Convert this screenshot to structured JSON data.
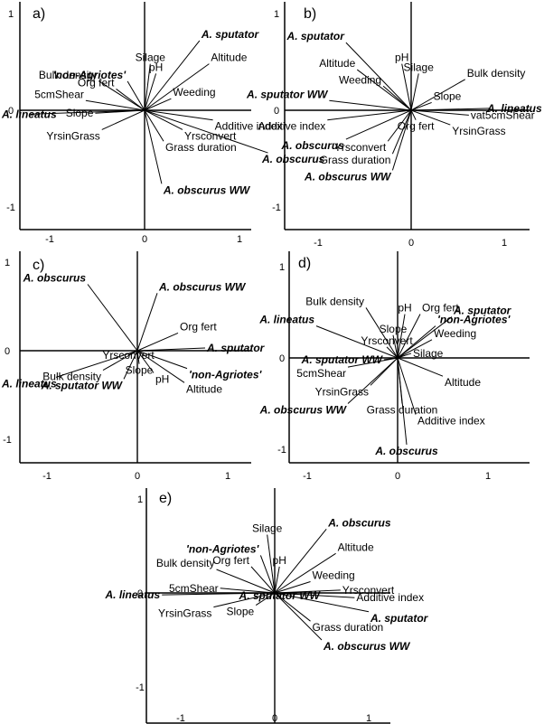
{
  "chart_data": [
    {
      "type": "scatter",
      "panel_label": "a)",
      "xlim": [
        -1.3,
        1.3
      ],
      "ylim": [
        -1.2,
        1.0
      ],
      "x_ticks": [
        "-1",
        "0",
        "1"
      ],
      "y_ticks": [
        "1",
        "0",
        "-1"
      ],
      "vectors": [
        {
          "label": "A. sputator",
          "species": true,
          "x": 0.58,
          "y": 0.72
        },
        {
          "label": "Silage",
          "species": false,
          "x": 0.06,
          "y": 0.48
        },
        {
          "label": "pH",
          "species": false,
          "x": 0.12,
          "y": 0.38
        },
        {
          "label": "Altitude",
          "species": false,
          "x": 0.68,
          "y": 0.48
        },
        {
          "label": "Bulk density",
          "species": false,
          "x": -0.48,
          "y": 0.3
        },
        {
          "label": "'non-Agriotes'",
          "species": true,
          "x": -0.18,
          "y": 0.3
        },
        {
          "label": "Org fert",
          "species": false,
          "x": -0.3,
          "y": 0.22
        },
        {
          "label": "5cmShear",
          "species": false,
          "x": -0.62,
          "y": 0.1
        },
        {
          "label": "Weeding",
          "species": false,
          "x": 0.28,
          "y": 0.12
        },
        {
          "label": "A. lineatus",
          "species": true,
          "x": -1.2,
          "y": -0.04
        },
        {
          "label": "Slope",
          "species": false,
          "x": -0.52,
          "y": -0.03
        },
        {
          "label": "YrsinGrass",
          "species": false,
          "x": -0.45,
          "y": -0.2
        },
        {
          "label": "Additive index",
          "species": false,
          "x": 0.72,
          "y": -0.1
        },
        {
          "label": "Yrsconvert",
          "species": false,
          "x": 0.4,
          "y": -0.2
        },
        {
          "label": "Grass duration",
          "species": false,
          "x": 0.2,
          "y": -0.32
        },
        {
          "label": "A. obscurus",
          "species": true,
          "x": 1.3,
          "y": -0.44
        },
        {
          "label": "A. obscurus WW",
          "species": true,
          "x": 0.18,
          "y": -0.76
        }
      ]
    },
    {
      "type": "scatter",
      "panel_label": "b)",
      "xlim": [
        -1.0,
        1.0
      ],
      "ylim": [
        -1.2,
        1.0
      ],
      "x_ticks": [
        "-1",
        "0",
        "1"
      ],
      "y_ticks": [
        "1",
        "0",
        "-1"
      ],
      "vectors": [
        {
          "label": "A. sputator",
          "species": true,
          "x": -0.7,
          "y": 0.7
        },
        {
          "label": "Altitude",
          "species": false,
          "x": -0.58,
          "y": 0.42
        },
        {
          "label": "pH",
          "species": false,
          "x": -0.1,
          "y": 0.48
        },
        {
          "label": "Silage",
          "species": false,
          "x": 0.08,
          "y": 0.38
        },
        {
          "label": "Bulk density",
          "species": false,
          "x": 0.58,
          "y": 0.32
        },
        {
          "label": "Weeding",
          "species": false,
          "x": -0.3,
          "y": 0.25
        },
        {
          "label": "A. sputator WW",
          "species": true,
          "x": -0.88,
          "y": 0.1
        },
        {
          "label": "Slope",
          "species": false,
          "x": 0.22,
          "y": 0.08
        },
        {
          "label": "A. lineatus",
          "species": true,
          "x": 0.85,
          "y": 0.02
        },
        {
          "label": "Org fert",
          "species": false,
          "x": 0.05,
          "y": -0.1
        },
        {
          "label": "vat5cmShear",
          "species": false,
          "x": 0.62,
          "y": -0.05
        },
        {
          "label": "YrsinGrass",
          "species": false,
          "x": 0.42,
          "y": -0.15
        },
        {
          "label": "Additive index",
          "species": false,
          "x": -0.9,
          "y": -0.1
        },
        {
          "label": "Yrsconvert",
          "species": false,
          "x": -0.25,
          "y": -0.32
        },
        {
          "label": "A. obscurus",
          "species": true,
          "x": -0.7,
          "y": -0.3
        },
        {
          "label": "Grass duration",
          "species": false,
          "x": -0.2,
          "y": -0.45
        },
        {
          "label": "A. obscurus WW",
          "species": true,
          "x": -0.2,
          "y": -0.62
        }
      ]
    },
    {
      "type": "scatter",
      "panel_label": "c)",
      "xlim": [
        -1.2,
        1.2
      ],
      "ylim": [
        -1.2,
        1.0
      ],
      "x_ticks": [
        "-1",
        "0",
        "1"
      ],
      "y_ticks": [
        "1",
        "0",
        "-1"
      ],
      "vectors": [
        {
          "label": "A. obscurus",
          "species": true,
          "x": -0.55,
          "y": 0.75
        },
        {
          "label": "A. obscurus WW",
          "species": true,
          "x": 0.22,
          "y": 0.65
        },
        {
          "label": "Org fert",
          "species": false,
          "x": 0.45,
          "y": 0.2
        },
        {
          "label": "A. sputator",
          "species": true,
          "x": 0.75,
          "y": 0.03
        },
        {
          "label": "Yrsconvert",
          "species": false,
          "x": -0.1,
          "y": -0.05
        },
        {
          "label": "Slope",
          "species": false,
          "x": 0.02,
          "y": -0.15
        },
        {
          "label": "Bulk density",
          "species": false,
          "x": -0.38,
          "y": -0.22
        },
        {
          "label": "pH",
          "species": false,
          "x": 0.18,
          "y": -0.25
        },
        {
          "label": "'non-Agriotes'",
          "species": true,
          "x": 0.55,
          "y": -0.2
        },
        {
          "label": "A. lineatus",
          "species": true,
          "x": -0.9,
          "y": -0.3
        },
        {
          "label": "A. sputator WW",
          "species": true,
          "x": -0.15,
          "y": -0.32
        },
        {
          "label": "Altitude",
          "species": false,
          "x": 0.52,
          "y": -0.36
        }
      ]
    },
    {
      "type": "scatter",
      "panel_label": "d)",
      "xlim": [
        -1.3,
        1.2
      ],
      "ylim": [
        -1.2,
        1.1
      ],
      "x_ticks": [
        "-1",
        "0",
        "1"
      ],
      "y_ticks": [
        "1",
        "0",
        "-1"
      ],
      "vectors": [
        {
          "label": "Bulk density",
          "species": false,
          "x": -0.35,
          "y": 0.55
        },
        {
          "label": "pH",
          "species": false,
          "x": 0.08,
          "y": 0.48
        },
        {
          "label": "Org fert",
          "species": false,
          "x": 0.25,
          "y": 0.48
        },
        {
          "label": "A. sputator",
          "species": true,
          "x": 0.6,
          "y": 0.45
        },
        {
          "label": "'non-Agriotes'",
          "species": true,
          "x": 0.42,
          "y": 0.35
        },
        {
          "label": "A. lineatus",
          "species": true,
          "x": -0.9,
          "y": 0.35
        },
        {
          "label": "Slope",
          "species": false,
          "x": -0.05,
          "y": 0.25
        },
        {
          "label": "Weeding",
          "species": false,
          "x": 0.38,
          "y": 0.2
        },
        {
          "label": "Yrsconvert",
          "species": false,
          "x": -0.12,
          "y": 0.12
        },
        {
          "label": "Silage",
          "species": false,
          "x": 0.15,
          "y": 0.05
        },
        {
          "label": "A. sputator WW",
          "species": true,
          "x": -0.15,
          "y": -0.02
        },
        {
          "label": "5cmShear",
          "species": false,
          "x": -0.55,
          "y": -0.1
        },
        {
          "label": "Altitude",
          "species": false,
          "x": 0.5,
          "y": -0.2
        },
        {
          "label": "YrsinGrass",
          "species": false,
          "x": -0.3,
          "y": -0.3
        },
        {
          "label": "A. obscurus WW",
          "species": true,
          "x": -0.55,
          "y": -0.5
        },
        {
          "label": "Grass duration",
          "species": false,
          "x": 0.05,
          "y": -0.5
        },
        {
          "label": "Additive index",
          "species": false,
          "x": 0.2,
          "y": -0.62
        },
        {
          "label": "A. obscurus",
          "species": true,
          "x": 0.1,
          "y": -0.95
        }
      ]
    },
    {
      "type": "scatter",
      "panel_label": "e)",
      "xlim": [
        -1.2,
        1.2
      ],
      "ylim": [
        -1.3,
        1.0
      ],
      "x_ticks": [
        "-1",
        "0",
        "1"
      ],
      "y_ticks": [
        "1",
        "0",
        "-1"
      ],
      "vectors": [
        {
          "label": "Silage",
          "species": false,
          "x": -0.08,
          "y": 0.62
        },
        {
          "label": "A. obscurus",
          "species": true,
          "x": 0.55,
          "y": 0.68
        },
        {
          "label": "'non-Agriotes'",
          "species": true,
          "x": -0.15,
          "y": 0.4
        },
        {
          "label": "Altitude",
          "species": false,
          "x": 0.65,
          "y": 0.42
        },
        {
          "label": "Org fert",
          "species": false,
          "x": -0.25,
          "y": 0.28
        },
        {
          "label": "pH",
          "species": false,
          "x": 0.05,
          "y": 0.28
        },
        {
          "label": "Bulk density",
          "species": false,
          "x": -0.62,
          "y": 0.25
        },
        {
          "label": "Weeding",
          "species": false,
          "x": 0.38,
          "y": 0.12
        },
        {
          "label": "5cmShear",
          "species": false,
          "x": -0.58,
          "y": 0.05
        },
        {
          "label": "Yrsconvert",
          "species": false,
          "x": 0.7,
          "y": 0.03
        },
        {
          "label": "A. lineatus",
          "species": true,
          "x": -1.2,
          "y": -0.02
        },
        {
          "label": "A. sputator WW",
          "species": true,
          "x": 0.05,
          "y": -0.03
        },
        {
          "label": "Additive index",
          "species": false,
          "x": 0.85,
          "y": -0.05
        },
        {
          "label": "YrsinGrass",
          "species": false,
          "x": -0.65,
          "y": -0.15
        },
        {
          "label": "Slope",
          "species": false,
          "x": -0.2,
          "y": -0.13
        },
        {
          "label": "A. sputator",
          "species": true,
          "x": 1.0,
          "y": -0.2
        },
        {
          "label": "Grass duration",
          "species": false,
          "x": 0.38,
          "y": -0.3
        },
        {
          "label": "A. obscurus WW",
          "species": true,
          "x": 0.5,
          "y": -0.5
        }
      ]
    }
  ]
}
